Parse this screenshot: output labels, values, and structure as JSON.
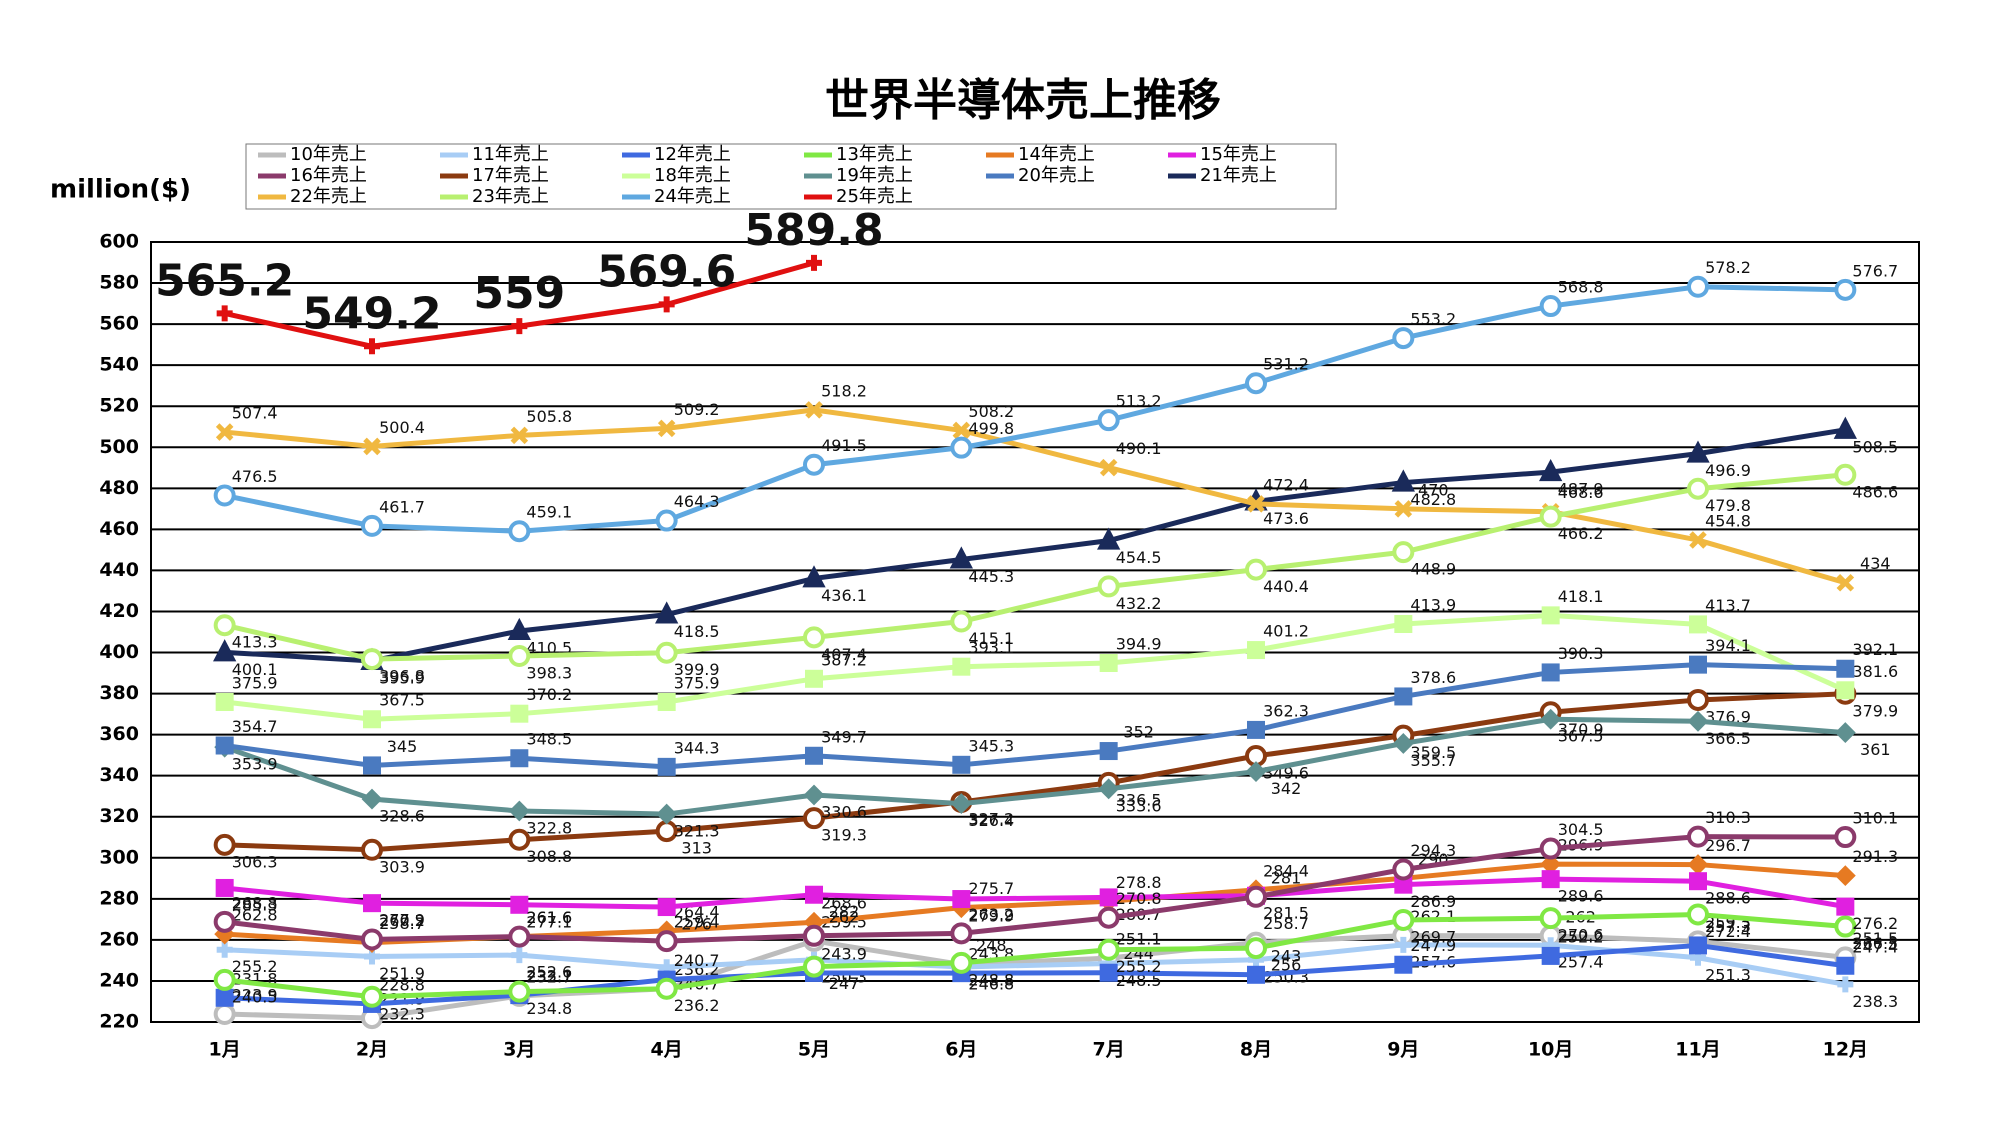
{
  "chart_data": {
    "type": "line",
    "title": "世界半導体売上推移",
    "y_label": "million($)",
    "categories": [
      "1月",
      "2月",
      "3月",
      "4月",
      "5月",
      "6月",
      "7月",
      "8月",
      "9月",
      "10月",
      "11月",
      "12月"
    ],
    "ylim": [
      220,
      600
    ],
    "yticks": [
      220,
      240,
      260,
      280,
      300,
      320,
      340,
      360,
      380,
      400,
      420,
      440,
      460,
      480,
      500,
      520,
      540,
      560,
      580,
      600
    ],
    "grid": true,
    "series": [
      {
        "name": "10年売上",
        "color": "#bdbdbd",
        "marker": "circle",
        "values": [
          223.9,
          221.9,
          232.7,
          236.2,
          259.5,
          248,
          251.1,
          258.7,
          262.1,
          262,
          259.3,
          251.5
        ]
      },
      {
        "name": "11年売上",
        "color": "#a8cdf5",
        "marker": "cross",
        "values": [
          255.2,
          251.9,
          252.6,
          246.7,
          250.3,
          246.8,
          248.5,
          250.3,
          257.6,
          257.4,
          251.3,
          238.3
        ]
      },
      {
        "name": "12年売上",
        "color": "#3f6ae0",
        "marker": "square",
        "values": [
          231.8,
          228.8,
          233.1,
          240.7,
          243.9,
          243.8,
          244,
          243,
          247.9,
          252.2,
          257.3,
          247.4
        ]
      },
      {
        "name": "13年売上",
        "color": "#80e844",
        "marker": "circle",
        "values": [
          240.5,
          232.3,
          234.8,
          236.2,
          247,
          248.8,
          255.2,
          256,
          269.7,
          270.6,
          272.4,
          266.5
        ]
      },
      {
        "name": "14年売上",
        "color": "#e67a22",
        "marker": "diamond",
        "values": [
          262.8,
          258.7,
          261.6,
          264.4,
          268.6,
          275.7,
          278.8,
          284.4,
          290,
          296.9,
          296.7,
          291.3
        ]
      },
      {
        "name": "15年売上",
        "color": "#e020e0",
        "marker": "square",
        "values": [
          285.3,
          277.9,
          277.1,
          276,
          282,
          279.9,
          280.7,
          281.5,
          286.9,
          289.6,
          288.6,
          276.2
        ]
      },
      {
        "name": "16年売上",
        "color": "#8b3a6b",
        "marker": "circle",
        "values": [
          268.8,
          260.2,
          261.6,
          259.4,
          262,
          263.2,
          270.8,
          281,
          294.3,
          304.5,
          310.3,
          310.1
        ]
      },
      {
        "name": "17年売上",
        "color": "#8b3a10",
        "marker": "circle",
        "values": [
          306.3,
          303.9,
          308.8,
          313,
          319.3,
          327.2,
          336.5,
          349.6,
          359.5,
          370.9,
          376.9,
          379.9
        ]
      },
      {
        "name": "18年売上",
        "color": "#ccff99",
        "marker": "square",
        "values": [
          375.9,
          367.5,
          370.2,
          375.9,
          387.2,
          393.1,
          394.9,
          401.2,
          413.9,
          418.1,
          413.7,
          381.6
        ]
      },
      {
        "name": "19年売上",
        "color": "#5f9090",
        "marker": "diamond",
        "values": [
          353.9,
          328.6,
          322.8,
          321.3,
          330.6,
          326.4,
          333.6,
          342,
          355.7,
          367.5,
          366.5,
          361
        ]
      },
      {
        "name": "20年売上",
        "color": "#4a7ac0",
        "marker": "square",
        "values": [
          354.7,
          345,
          348.5,
          344.3,
          349.7,
          345.3,
          352,
          362.3,
          378.6,
          390.3,
          394.1,
          392.1
        ]
      },
      {
        "name": "21年売上",
        "color": "#1a2a5a",
        "marker": "triangle",
        "values": [
          400.1,
          395.9,
          410.5,
          418.5,
          436.1,
          445.3,
          454.5,
          473.6,
          482.8,
          487.9,
          496.9,
          508.5
        ]
      },
      {
        "name": "22年売上",
        "color": "#f0b840",
        "marker": "x",
        "values": [
          507.4,
          500.4,
          505.8,
          509.2,
          518.2,
          508.2,
          490.1,
          472.4,
          470,
          468.6,
          454.8,
          434
        ]
      },
      {
        "name": "23年売上",
        "color": "#b8f070",
        "marker": "circle",
        "values": [
          413.3,
          396.8,
          398.3,
          399.9,
          407.4,
          415.1,
          432.2,
          440.4,
          448.9,
          466.2,
          479.8,
          486.6
        ]
      },
      {
        "name": "24年売上",
        "color": "#5fa8e0",
        "marker": "circle",
        "values": [
          476.5,
          461.7,
          459.1,
          464.3,
          491.5,
          499.8,
          513.2,
          531.2,
          553.2,
          568.8,
          578.2,
          576.7
        ]
      },
      {
        "name": "25年売上",
        "color": "#e01010",
        "marker": "cross",
        "values": [
          565.2,
          549.2,
          559,
          569.6,
          589.8,
          null,
          null,
          null,
          null,
          null,
          null,
          null
        ]
      }
    ]
  }
}
